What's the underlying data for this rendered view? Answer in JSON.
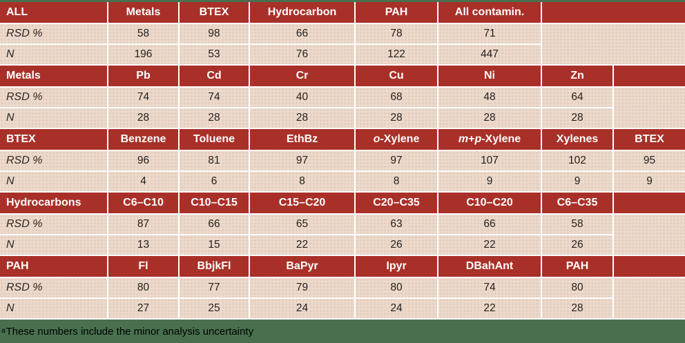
{
  "colors": {
    "header_red": "#a93028",
    "row_pink": "#ecd9cb",
    "divider_white": "#ffffff",
    "page_green": "#48704e",
    "header_text": "#ffffff",
    "data_text": "#24201f"
  },
  "row_labels": {
    "rsd": "RSD %",
    "n": "N"
  },
  "sections": [
    {
      "id": "all",
      "label": "ALL",
      "trailing": "wide",
      "columns": [
        {
          "header": [
            {
              "t": "Metals"
            }
          ],
          "rsd": "58",
          "n": "196"
        },
        {
          "header": [
            {
              "t": "BTEX"
            }
          ],
          "rsd": "98",
          "n": "53"
        },
        {
          "header": [
            {
              "t": "Hydrocarbon"
            }
          ],
          "rsd": "66",
          "n": "76"
        },
        {
          "header": [
            {
              "t": "PAH"
            }
          ],
          "rsd": "78",
          "n": "122"
        },
        {
          "header": [
            {
              "t": "All contamin."
            }
          ],
          "rsd": "71",
          "n": "447"
        }
      ]
    },
    {
      "id": "metals",
      "label": "Metals",
      "trailing": "narrow",
      "columns": [
        {
          "header": [
            {
              "t": "Pb"
            }
          ],
          "rsd": "74",
          "n": "28"
        },
        {
          "header": [
            {
              "t": "Cd"
            }
          ],
          "rsd": "74",
          "n": "28"
        },
        {
          "header": [
            {
              "t": "Cr"
            }
          ],
          "rsd": "40",
          "n": "28"
        },
        {
          "header": [
            {
              "t": "Cu"
            }
          ],
          "rsd": "68",
          "n": "28"
        },
        {
          "header": [
            {
              "t": "Ni"
            }
          ],
          "rsd": "48",
          "n": "28"
        },
        {
          "header": [
            {
              "t": "Zn"
            }
          ],
          "rsd": "64",
          "n": "28"
        }
      ]
    },
    {
      "id": "btex",
      "label": "BTEX",
      "trailing": "none",
      "columns": [
        {
          "header": [
            {
              "t": "Benzene"
            }
          ],
          "rsd": "96",
          "n": "4"
        },
        {
          "header": [
            {
              "t": "Toluene"
            }
          ],
          "rsd": "81",
          "n": "6"
        },
        {
          "header": [
            {
              "t": "EthBz"
            }
          ],
          "rsd": "97",
          "n": "8"
        },
        {
          "header": [
            {
              "t": "o",
              "i": true
            },
            {
              "t": "-Xylene"
            }
          ],
          "rsd": "97",
          "n": "8"
        },
        {
          "header": [
            {
              "t": "m",
              "i": true
            },
            {
              "t": "+"
            },
            {
              "t": "p",
              "i": true
            },
            {
              "t": "-Xylene"
            }
          ],
          "rsd": "107",
          "n": "9"
        },
        {
          "header": [
            {
              "t": "Xylenes"
            }
          ],
          "rsd": "102",
          "n": "9"
        },
        {
          "header": [
            {
              "t": "BTEX"
            }
          ],
          "rsd": "95",
          "n": "9"
        }
      ]
    },
    {
      "id": "hydrocarbons",
      "label": "Hydrocarbons",
      "trailing": "narrow",
      "columns": [
        {
          "header": [
            {
              "t": "C6–C10"
            }
          ],
          "rsd": "87",
          "n": "13"
        },
        {
          "header": [
            {
              "t": "C10–C15"
            }
          ],
          "rsd": "66",
          "n": "15"
        },
        {
          "header": [
            {
              "t": "C15–C20"
            }
          ],
          "rsd": "65",
          "n": "22"
        },
        {
          "header": [
            {
              "t": "C20–C35"
            }
          ],
          "rsd": "63",
          "n": "26"
        },
        {
          "header": [
            {
              "t": "C10–C20"
            }
          ],
          "rsd": "66",
          "n": "22"
        },
        {
          "header": [
            {
              "t": "C6–C35"
            }
          ],
          "rsd": "58",
          "n": "26"
        }
      ]
    },
    {
      "id": "pah",
      "label": "PAH",
      "trailing": "narrow",
      "columns": [
        {
          "header": [
            {
              "t": "Fl"
            }
          ],
          "rsd": "80",
          "n": "27"
        },
        {
          "header": [
            {
              "t": "BbjkFl"
            }
          ],
          "rsd": "77",
          "n": "25"
        },
        {
          "header": [
            {
              "t": "BaPyr"
            }
          ],
          "rsd": "79",
          "n": "24"
        },
        {
          "header": [
            {
              "t": "Ipyr"
            }
          ],
          "rsd": "80",
          "n": "24"
        },
        {
          "header": [
            {
              "t": "DBahAnt"
            }
          ],
          "rsd": "74",
          "n": "22"
        },
        {
          "header": [
            {
              "t": "PAH"
            }
          ],
          "rsd": "80",
          "n": "28"
        }
      ]
    }
  ],
  "footer": {
    "superscript": "a",
    "note": "These numbers include the minor analysis uncertainty"
  }
}
